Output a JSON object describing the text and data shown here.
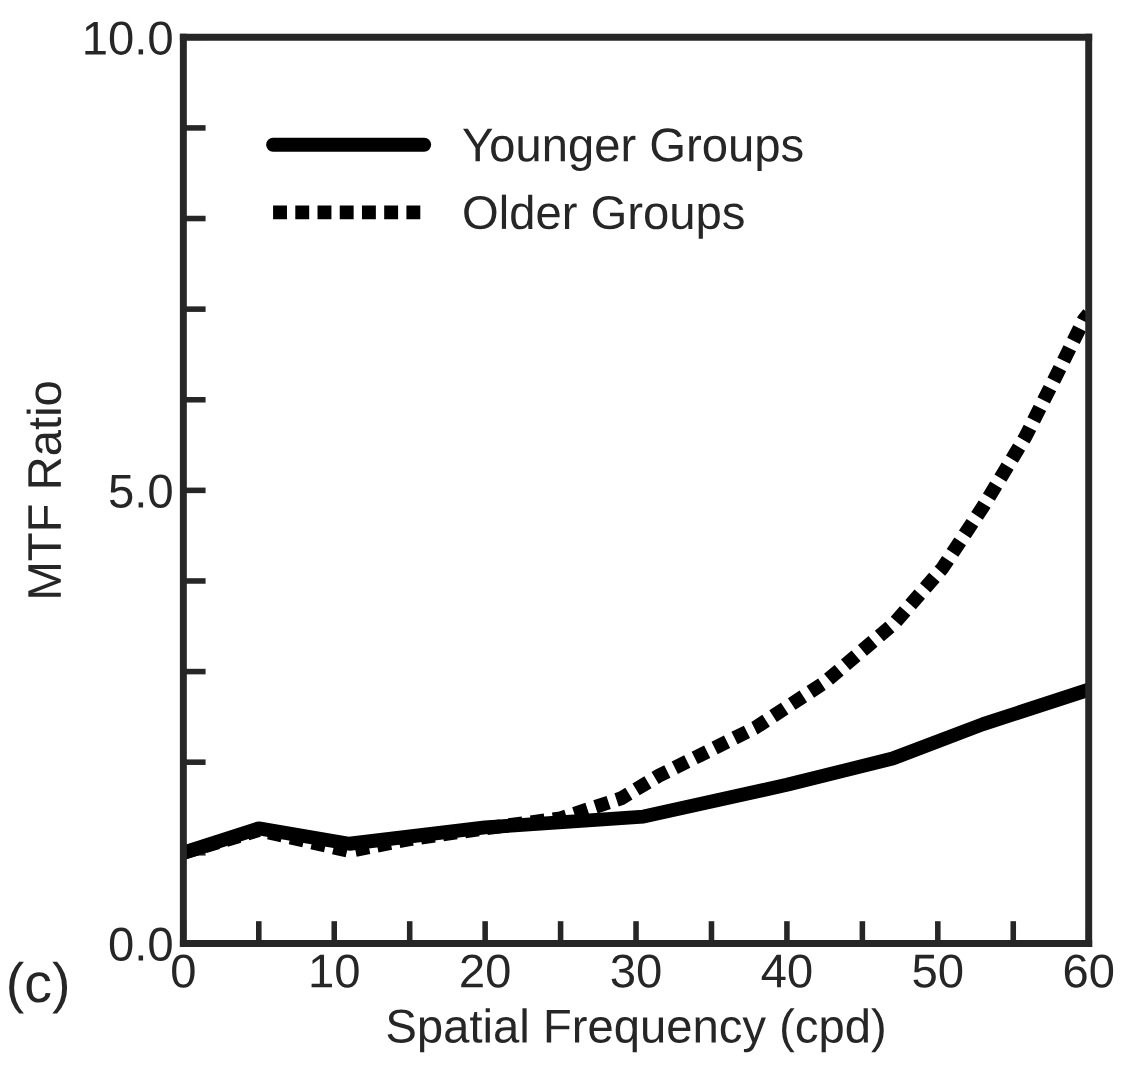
{
  "chart_data": {
    "type": "line",
    "xlabel": "Spatial Frequency (cpd)",
    "ylabel": "MTF Ratio",
    "xlim": [
      0,
      60
    ],
    "ylim": [
      0,
      10
    ],
    "xticks": [
      0,
      {
        "value": 5,
        "label": null
      },
      10,
      {
        "value": 15,
        "label": null
      },
      20,
      {
        "value": 25,
        "label": null
      },
      30,
      {
        "value": 35,
        "label": null
      },
      40,
      {
        "value": 45,
        "label": null
      },
      50,
      {
        "value": 55,
        "label": null
      },
      60
    ],
    "yticks": [
      {
        "value": 0,
        "label": "0.0"
      },
      {
        "value": 1,
        "label": null
      },
      {
        "value": 2,
        "label": null
      },
      {
        "value": 3,
        "label": null
      },
      {
        "value": 4,
        "label": null
      },
      {
        "value": 5,
        "label": "5.0"
      },
      {
        "value": 6,
        "label": null
      },
      {
        "value": 7,
        "label": null
      },
      {
        "value": 8,
        "label": null
      },
      {
        "value": 9,
        "label": null
      },
      {
        "value": 10,
        "label": "10.0"
      }
    ],
    "grid": false,
    "legend": "top left",
    "annotations": [
      "(c)"
    ],
    "series": [
      {
        "name": "Younger Groups",
        "color": "#000000",
        "line_style": "solid",
        "x": [
          0,
          5,
          11,
          20,
          30.5,
          40,
          47,
          53,
          60
        ],
        "values": [
          1.0,
          1.27,
          1.1,
          1.28,
          1.4,
          1.75,
          2.04,
          2.42,
          2.8
        ]
      },
      {
        "name": "Older Groups",
        "color": "#000000",
        "line_style": "dotted",
        "x": [
          0,
          5,
          11,
          15,
          20,
          25,
          29,
          31.5,
          37.9,
          42.5,
          47.1,
          50.3,
          53,
          55.8,
          58.1,
          59.7,
          60
        ],
        "values": [
          1.0,
          1.25,
          1.02,
          1.15,
          1.27,
          1.38,
          1.6,
          1.85,
          2.38,
          2.88,
          3.53,
          4.14,
          4.82,
          5.59,
          6.35,
          6.89,
          6.95
        ]
      }
    ]
  }
}
